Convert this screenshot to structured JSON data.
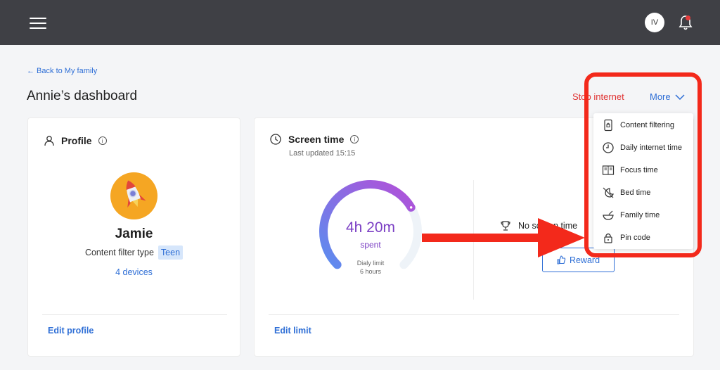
{
  "topbar": {
    "avatar_initials": "IV"
  },
  "header": {
    "back_link": "← Back to My family",
    "title": "Annie’s dashboard",
    "stop_internet": "Stop internet",
    "more": "More"
  },
  "profile": {
    "title": "Profile",
    "child_name": "Jamie",
    "filter_label": "Content filter type",
    "filter_value": "Teen",
    "devices": "4 devices",
    "edit": "Edit profile"
  },
  "screen_time": {
    "title": "Screen time",
    "last_updated": "Last updated 15:15",
    "spent_value": "4h 20m",
    "spent_label": "spent",
    "limit_label": "Dialy limit",
    "limit_value": "6 hours",
    "progress_fraction": 0.72,
    "no_screen_time": "No screen time",
    "reward": "Reward",
    "edit": "Edit limit"
  },
  "more_menu": {
    "items": [
      {
        "label": "Content filtering",
        "icon": "phone-lock-icon"
      },
      {
        "label": "Daily internet time",
        "icon": "clock-icon"
      },
      {
        "label": "Focus time",
        "icon": "book-icon"
      },
      {
        "label": "Bed time",
        "icon": "moon-off-icon"
      },
      {
        "label": "Family time",
        "icon": "bowl-icon"
      },
      {
        "label": "Pin code",
        "icon": "lock-icon"
      }
    ]
  },
  "colors": {
    "accent": "#2f6fd6",
    "danger": "#e03535",
    "topbar": "#3f4045",
    "gauge_start": "#5b8def",
    "gauge_end": "#b34fd8",
    "annotation": "#f3291b"
  }
}
